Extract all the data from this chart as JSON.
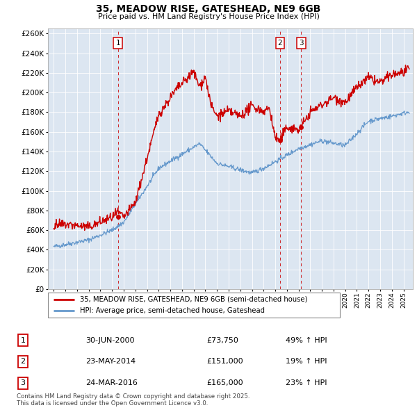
{
  "title": "35, MEADOW RISE, GATESHEAD, NE9 6GB",
  "subtitle": "Price paid vs. HM Land Registry's House Price Index (HPI)",
  "ylim": [
    0,
    265000
  ],
  "ytick_step": 20000,
  "background_color": "#ffffff",
  "plot_bg_color": "#dce6f1",
  "grid_color": "#ffffff",
  "sale_color": "#cc0000",
  "hpi_color": "#6699cc",
  "vline_color": "#cc0000",
  "sale_points": [
    {
      "date": 2000.5,
      "price": 73750,
      "label": "1"
    },
    {
      "date": 2014.4,
      "price": 151000,
      "label": "2"
    },
    {
      "date": 2016.23,
      "price": 165000,
      "label": "3"
    }
  ],
  "legend_sale_label": "35, MEADOW RISE, GATESHEAD, NE9 6GB (semi-detached house)",
  "legend_hpi_label": "HPI: Average price, semi-detached house, Gateshead",
  "table_rows": [
    {
      "num": "1",
      "date": "30-JUN-2000",
      "price": "£73,750",
      "change": "49% ↑ HPI"
    },
    {
      "num": "2",
      "date": "23-MAY-2014",
      "price": "£151,000",
      "change": "19% ↑ HPI"
    },
    {
      "num": "3",
      "date": "24-MAR-2016",
      "price": "£165,000",
      "change": "23% ↑ HPI"
    }
  ],
  "footnote": "Contains HM Land Registry data © Crown copyright and database right 2025.\nThis data is licensed under the Open Government Licence v3.0.",
  "xmin": 1994.5,
  "xmax": 2025.8
}
